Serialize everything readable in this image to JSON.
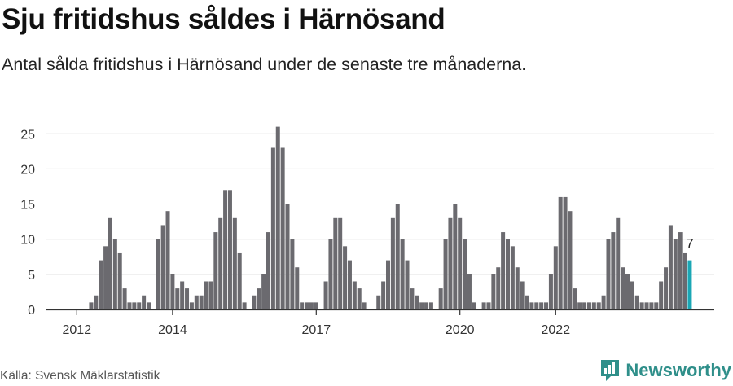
{
  "header": {
    "title": "Sju fritidshus såldes i Härnösand",
    "subtitle": "Antal sålda fritidshus i Härnösand under de senaste tre månaderna."
  },
  "footer": {
    "source": "Källa: Svensk Mäklarstatistik",
    "brand": "Newsworthy"
  },
  "colors": {
    "bar": "#6b6a6f",
    "highlight": "#1aa7b5",
    "grid": "#d9d9d9",
    "brand": "#2f8f8a"
  },
  "chart_data": {
    "type": "bar",
    "title": "Sju fritidshus såldes i Härnösand",
    "subtitle": "Antal sålda fritidshus i Härnösand under de senaste tre månaderna.",
    "xlabel": "",
    "ylabel": "",
    "ylim": [
      0,
      26
    ],
    "yticks": [
      0,
      5,
      10,
      15,
      20,
      25
    ],
    "grid": true,
    "legend": "none",
    "x_tick_labels": [
      {
        "label": "2012",
        "index": 0
      },
      {
        "label": "2014",
        "index": 20
      },
      {
        "label": "2017",
        "index": 50
      },
      {
        "label": "2020",
        "index": 80
      },
      {
        "label": "2022",
        "index": 100
      }
    ],
    "values": [
      0,
      0,
      0,
      1,
      2,
      7,
      9,
      13,
      10,
      8,
      3,
      1,
      1,
      1,
      2,
      1,
      0,
      10,
      12,
      14,
      5,
      3,
      4,
      3,
      1,
      2,
      2,
      4,
      4,
      11,
      13,
      17,
      17,
      13,
      8,
      1,
      0,
      2,
      3,
      5,
      11,
      23,
      26,
      23,
      15,
      10,
      6,
      1,
      1,
      1,
      1,
      0,
      4,
      10,
      13,
      13,
      9,
      7,
      4,
      3,
      1,
      0,
      0,
      2,
      4,
      7,
      13,
      15,
      10,
      7,
      3,
      2,
      1,
      1,
      1,
      0,
      3,
      10,
      13,
      15,
      13,
      10,
      5,
      1,
      0,
      1,
      1,
      5,
      6,
      11,
      10,
      9,
      6,
      4,
      2,
      1,
      1,
      1,
      1,
      5,
      9,
      16,
      16,
      14,
      3,
      1,
      1,
      1,
      1,
      1,
      2,
      10,
      11,
      13,
      6,
      5,
      4,
      2,
      1,
      1,
      1,
      1,
      4,
      6,
      12,
      10,
      11,
      8,
      7
    ],
    "highlight_index": 128,
    "data_labels": [
      {
        "index": 128,
        "text": "7"
      }
    ]
  }
}
